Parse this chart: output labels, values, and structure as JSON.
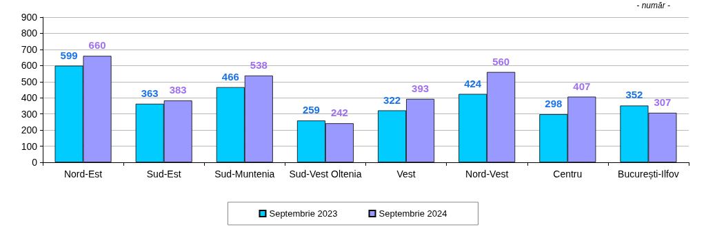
{
  "chart_data": {
    "type": "bar",
    "categories": [
      "Nord-Est",
      "Sud-Est",
      "Sud-Muntenia",
      "Sud-Vest Oltenia",
      "Vest",
      "Nord-Vest",
      "Centru",
      "București-Ilfov"
    ],
    "series": [
      {
        "name": "Septembrie 2023",
        "color": "#00ccff",
        "values": [
          599,
          363,
          466,
          259,
          322,
          424,
          298,
          352
        ]
      },
      {
        "name": "Septembrie 2024",
        "color": "#9999ff",
        "values": [
          660,
          383,
          538,
          242,
          393,
          560,
          407,
          307
        ]
      }
    ],
    "ylim": [
      0,
      900
    ],
    "yticks": [
      0,
      100,
      200,
      300,
      400,
      500,
      600,
      700,
      800,
      900
    ],
    "grid": "y",
    "legend": "bottom",
    "data_labels": true,
    "annotations": [
      "- număr -"
    ]
  }
}
